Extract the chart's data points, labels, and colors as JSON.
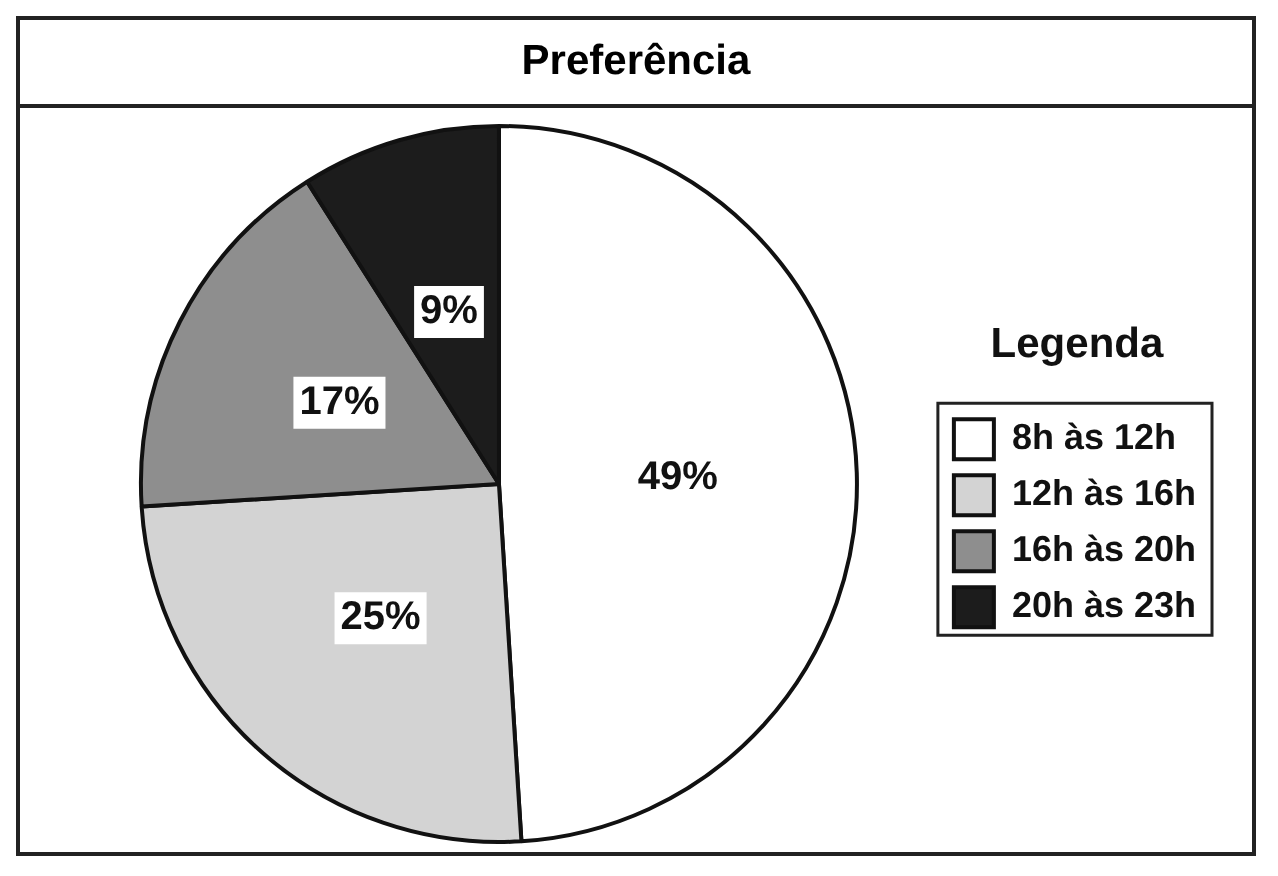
{
  "chart_data": {
    "type": "pie",
    "title": "Preferência",
    "legend_title": "Legenda",
    "legend": "right",
    "categories": [
      "8h às 12h",
      "12h às 16h",
      "16h às 20h",
      "20h às 23h"
    ],
    "values": [
      49,
      25,
      17,
      9
    ],
    "colors": [
      "#ffffff",
      "#d3d3d3",
      "#8e8e8e",
      "#1c1c1c"
    ],
    "value_labels": [
      "49%",
      "25%",
      "17%",
      "9%"
    ]
  }
}
